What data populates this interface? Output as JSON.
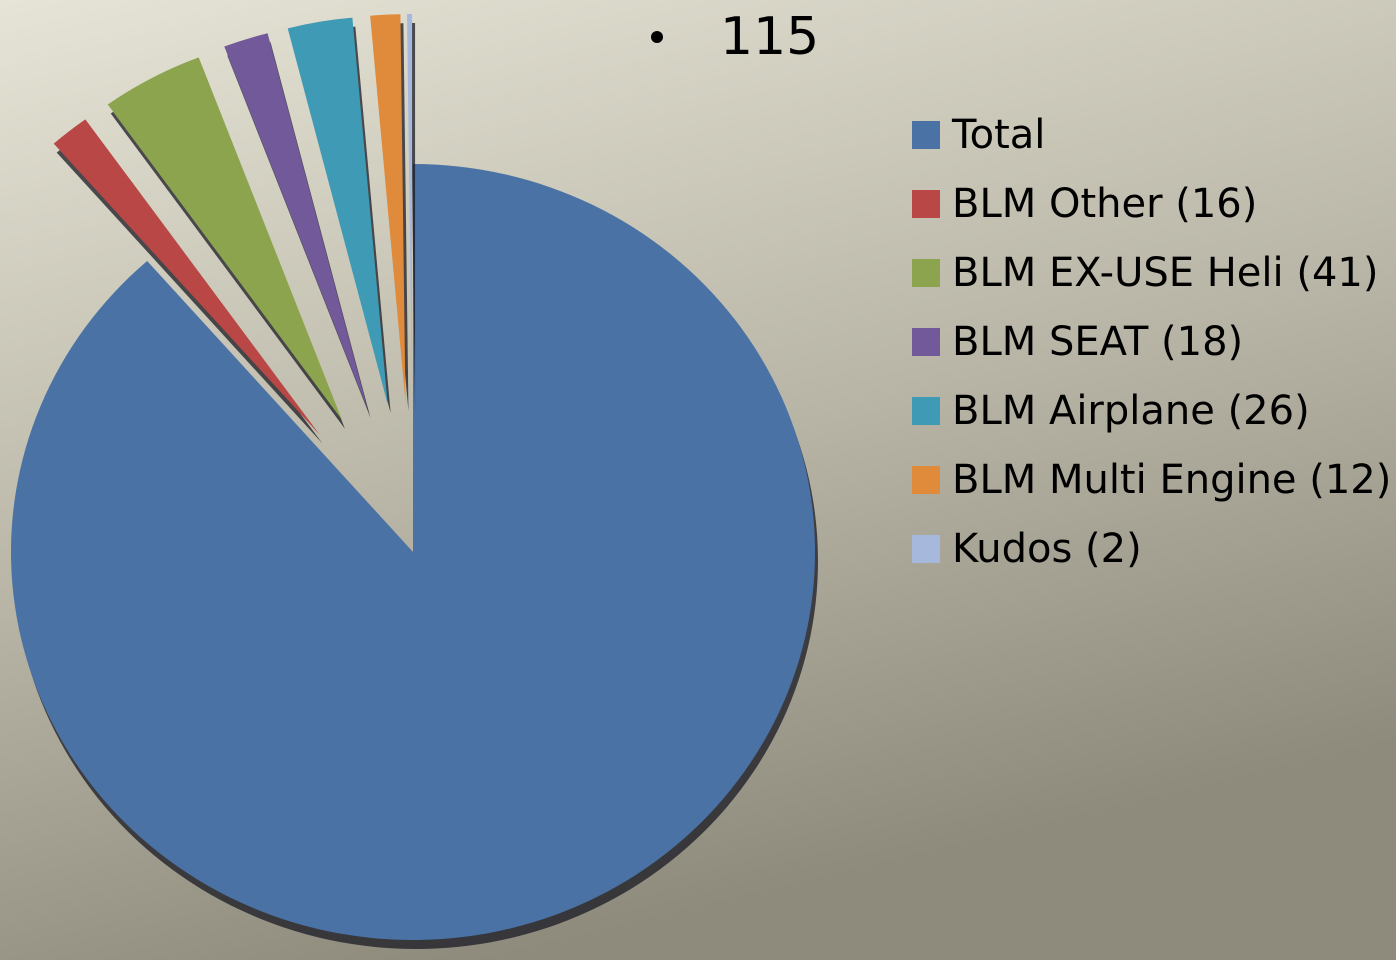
{
  "chart_data": {
    "type": "pie",
    "bullet_text": "115",
    "categories": [
      "Total",
      "BLM Other (16)",
      "BLM EX-USE Heli (41)",
      "BLM SEAT (18)",
      "BLM Airplane (26)",
      "BLM Multi Engine (12)",
      "Kudos (2)"
    ],
    "values": [
      88.5,
      1.6,
      4.1,
      1.8,
      2.6,
      1.2,
      0.2
    ],
    "colors": [
      "#4a72a5",
      "#b84745",
      "#8ca44e",
      "#72599a",
      "#3f9bb5",
      "#e08a3c",
      "#a6b8db"
    ],
    "exploded": [
      false,
      true,
      true,
      true,
      true,
      true,
      true
    ],
    "legend": "right"
  }
}
